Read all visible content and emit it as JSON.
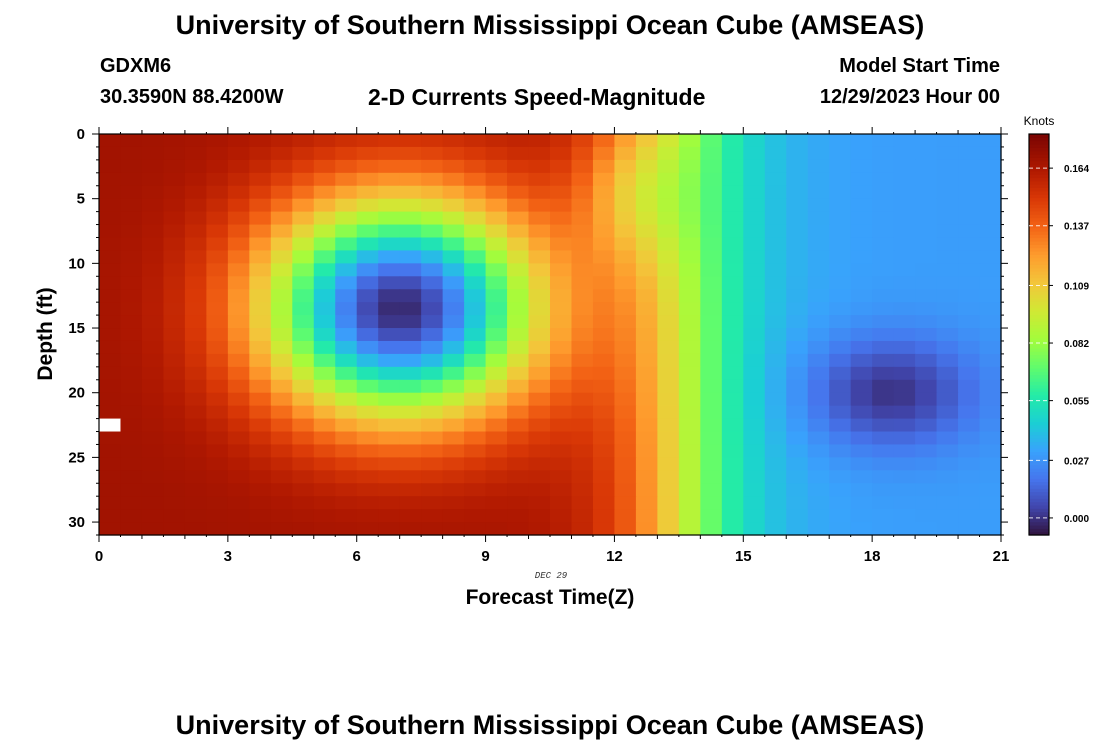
{
  "header": {
    "title": "University of Southern Mississippi Ocean Cube (AMSEAS)",
    "station": "GDXM6",
    "coordinates": "30.3590N  88.4200W",
    "plot_title": "2-D Currents Speed-Magnitude",
    "model_start_label": "Model Start Time",
    "model_start_value": "12/29/2023 Hour 00"
  },
  "footer": {
    "title": "University of Southern Mississippi Ocean Cube (AMSEAS)"
  },
  "colors": {
    "background": "#ffffff",
    "axis": "#000000",
    "missing": "#ffffff"
  },
  "chart_data": {
    "type": "heatmap",
    "title": "2-D Currents Speed-Magnitude",
    "xlabel": "Forecast Time(Z)",
    "ylabel": "Depth (ft)",
    "date_label": "DEC 29",
    "xlim": [
      0,
      21
    ],
    "ylim": [
      0,
      31
    ],
    "y_inverted": true,
    "xticks": [
      0,
      3,
      6,
      9,
      12,
      15,
      18,
      21
    ],
    "xtick_labels": [
      "0",
      "3",
      "6",
      "9",
      "12",
      "15",
      "18",
      "21"
    ],
    "yticks": [
      0,
      5,
      10,
      15,
      20,
      25,
      30
    ],
    "ytick_labels": [
      "0",
      "5",
      "10",
      "15",
      "20",
      "25",
      "30"
    ],
    "grid": false,
    "colorbar": {
      "unit": "Knots",
      "min": -0.008,
      "max": 0.18,
      "ticks": [
        0.164,
        0.137,
        0.109,
        0.082,
        0.055,
        0.027,
        0.0
      ],
      "tick_labels": [
        "0.164",
        "0.137",
        "0.109",
        "0.082",
        "0.055",
        "0.027",
        "0.000"
      ],
      "colormap": [
        [
          0.0,
          "#30123b"
        ],
        [
          0.07,
          "#4145ab"
        ],
        [
          0.14,
          "#4675ed"
        ],
        [
          0.21,
          "#39a2fc"
        ],
        [
          0.28,
          "#1bcfd4"
        ],
        [
          0.35,
          "#24eca6"
        ],
        [
          0.42,
          "#61fc6c"
        ],
        [
          0.49,
          "#a4fc3b"
        ],
        [
          0.56,
          "#d1e834"
        ],
        [
          0.63,
          "#f3c63a"
        ],
        [
          0.7,
          "#fe9b2d"
        ],
        [
          0.77,
          "#f36315"
        ],
        [
          0.84,
          "#d93806"
        ],
        [
          0.91,
          "#b11901"
        ],
        [
          1.0,
          "#7a0402"
        ]
      ]
    },
    "grid_resolution": {
      "nx": 42,
      "ny": 31,
      "dx_hours": 0.5,
      "dy_ft": 1
    },
    "field_model": {
      "description": "Approximate speed field reconstructed from the figure (knots)",
      "base_left": 0.168,
      "base_right": 0.03,
      "transition": {
        "center_hour": 13.5,
        "width_hours": 0.9
      },
      "lobes": [
        {
          "name": "blue-eddy",
          "center": [
            7.0,
            13.5
          ],
          "radii": [
            3.2,
            8.5
          ],
          "amplitude": -0.17
        },
        {
          "name": "surface-orange",
          "center": [
            12.4,
            4.5
          ],
          "radii": [
            1.3,
            5.5
          ],
          "amplitude": -0.03
        },
        {
          "name": "deep-dark-blue",
          "center": [
            18.4,
            20.0
          ],
          "radii": [
            2.0,
            4.3
          ],
          "amplitude": -0.03
        }
      ],
      "missing_cells": [
        [
          0,
          22
        ]
      ]
    }
  }
}
